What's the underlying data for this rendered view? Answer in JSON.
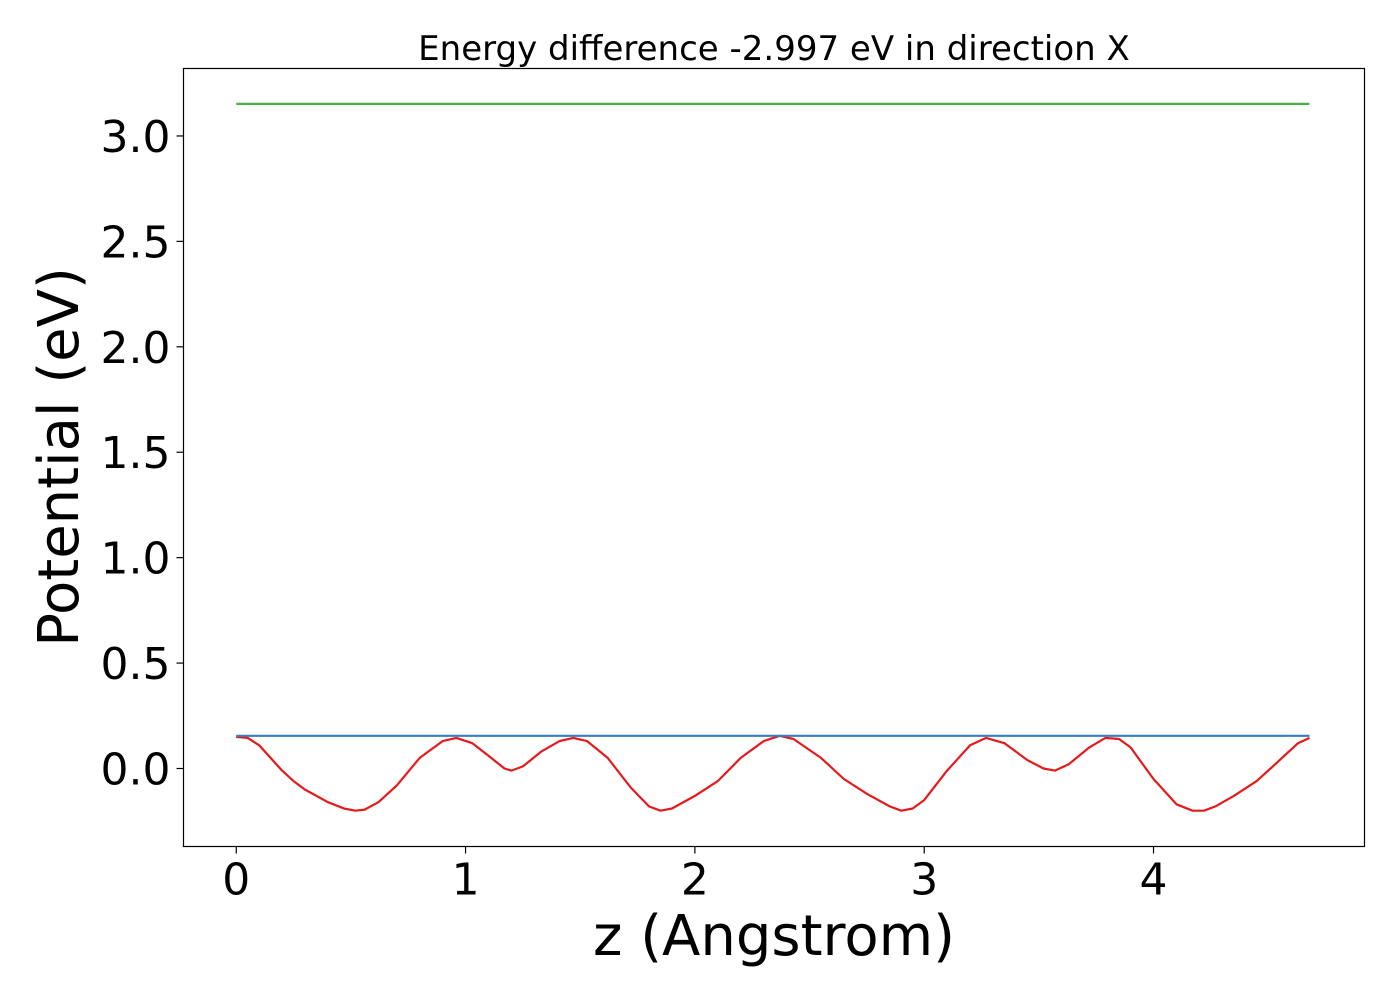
{
  "chart_data": {
    "type": "line",
    "title": "Energy difference -2.997 eV in direction X",
    "xlabel": "z (Angstrom)",
    "ylabel": "Potential (eV)",
    "xlim": [
      -0.23,
      4.92
    ],
    "ylim": [
      -0.37,
      3.32
    ],
    "xticks": [
      0,
      1,
      2,
      3,
      4
    ],
    "xtick_labels": [
      "0",
      "1",
      "2",
      "3",
      "4"
    ],
    "yticks": [
      0.0,
      0.5,
      1.0,
      1.5,
      2.0,
      2.5,
      3.0
    ],
    "ytick_labels": [
      "0.0",
      "0.5",
      "1.0",
      "1.5",
      "2.0",
      "2.5",
      "3.0"
    ],
    "grid": false,
    "legend": "none",
    "series": [
      {
        "color": "#e41a1c",
        "x": [
          0.0,
          0.05,
          0.1,
          0.15,
          0.2,
          0.25,
          0.3,
          0.4,
          0.47,
          0.52,
          0.56,
          0.62,
          0.7,
          0.8,
          0.9,
          0.96,
          1.03,
          1.1,
          1.17,
          1.2,
          1.25,
          1.33,
          1.41,
          1.47,
          1.53,
          1.62,
          1.72,
          1.8,
          1.85,
          1.9,
          2.0,
          2.1,
          2.2,
          2.3,
          2.37,
          2.43,
          2.55,
          2.65,
          2.75,
          2.85,
          2.9,
          2.95,
          3.0,
          3.1,
          3.2,
          3.27,
          3.35,
          3.45,
          3.52,
          3.57,
          3.63,
          3.72,
          3.79,
          3.85,
          3.9,
          4.0,
          4.1,
          4.17,
          4.22,
          4.27,
          4.35,
          4.45,
          4.55,
          4.63,
          4.68
        ],
        "y": [
          0.15,
          0.145,
          0.11,
          0.05,
          -0.01,
          -0.06,
          -0.1,
          -0.16,
          -0.19,
          -0.2,
          -0.195,
          -0.16,
          -0.08,
          0.05,
          0.13,
          0.145,
          0.12,
          0.06,
          0.0,
          -0.01,
          0.01,
          0.08,
          0.13,
          0.145,
          0.13,
          0.05,
          -0.09,
          -0.18,
          -0.2,
          -0.19,
          -0.13,
          -0.06,
          0.05,
          0.13,
          0.155,
          0.14,
          0.05,
          -0.05,
          -0.12,
          -0.18,
          -0.2,
          -0.19,
          -0.15,
          -0.01,
          0.11,
          0.145,
          0.12,
          0.04,
          0.0,
          -0.01,
          0.02,
          0.1,
          0.145,
          0.14,
          0.1,
          -0.05,
          -0.17,
          -0.2,
          -0.2,
          -0.18,
          -0.13,
          -0.06,
          0.04,
          0.12,
          0.145
        ]
      },
      {
        "color": "#377eb8",
        "x": [
          0.0,
          4.68
        ],
        "y": [
          0.155,
          0.155
        ]
      },
      {
        "color": "#4daf4a",
        "x": [
          0.0,
          4.68
        ],
        "y": [
          3.152,
          3.152
        ]
      }
    ]
  }
}
